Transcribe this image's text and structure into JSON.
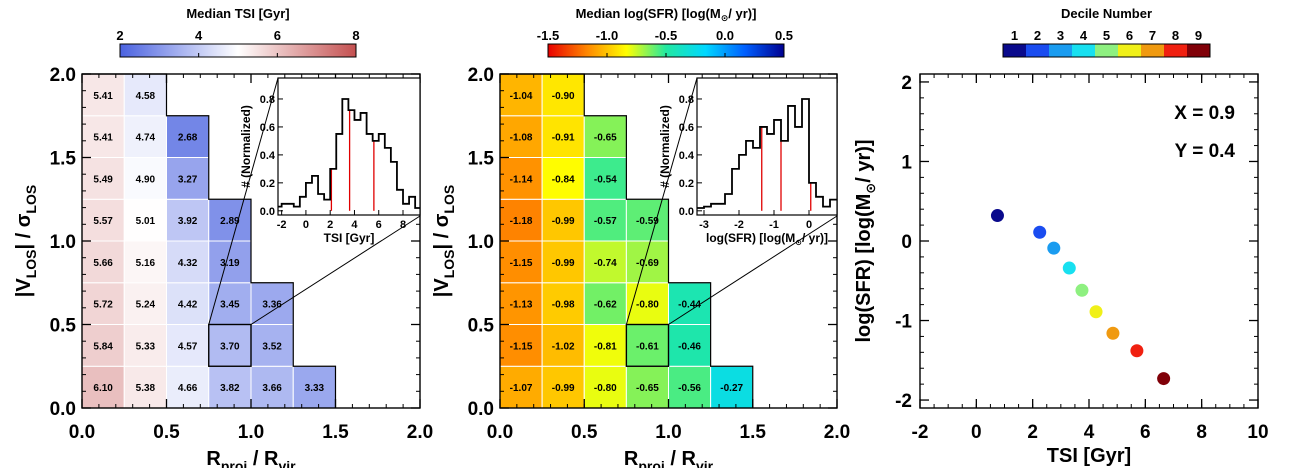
{
  "chart_data": [
    {
      "type": "heatmap",
      "title": "Median TSI [Gyr]",
      "xlabel_main": "R",
      "xlabel_sub1": "proj",
      "xlabel_mid": " / R",
      "xlabel_sub2": "vir",
      "ylabel_main": "|V",
      "ylabel_sub1": "LOS",
      "ylabel_mid": "| / σ",
      "ylabel_sub2": "LOS",
      "xlim": [
        0,
        2
      ],
      "ylim": [
        0,
        2
      ],
      "xticks": [
        "0.0",
        "0.5",
        "1.0",
        "1.5",
        "2.0"
      ],
      "yticks": [
        "0.0",
        "0.5",
        "1.0",
        "1.5",
        "2.0"
      ],
      "cell_width": 0.25,
      "cell_height": 0.25,
      "colorbar": {
        "min": 2,
        "max": 8,
        "ticks": [
          "2",
          "4",
          "6",
          "8"
        ],
        "colormap": "blue-white-red",
        "colors": [
          "#4a62e0",
          "#ffffff",
          "#c45050"
        ]
      },
      "highlight_cell": {
        "x": 0.75,
        "y": 0.25
      },
      "columns": [
        {
          "x": 0.0,
          "values": [
            "6.10",
            "5.84",
            "5.72",
            "5.66",
            "5.57",
            "5.49",
            "5.41",
            "5.41"
          ]
        },
        {
          "x": 0.25,
          "values": [
            "5.38",
            "5.33",
            "5.24",
            "5.16",
            "5.01",
            "4.90",
            "4.74",
            "4.58"
          ]
        },
        {
          "x": 0.5,
          "values": [
            "4.66",
            "4.57",
            "4.42",
            "4.32",
            "3.92",
            "3.27",
            "2.68"
          ]
        },
        {
          "x": 0.75,
          "values": [
            "3.82",
            "3.70",
            "3.45",
            "3.19",
            "2.89"
          ]
        },
        {
          "x": 1.0,
          "values": [
            "3.66",
            "3.52",
            "3.36"
          ]
        },
        {
          "x": 1.25,
          "values": [
            "3.33"
          ]
        }
      ],
      "inset": {
        "type": "histogram",
        "xlabel": "TSI [Gyr]",
        "ylabel": "# (Normalized)",
        "xlim": [
          -2.3,
          9.4
        ],
        "ylim": [
          -0.03,
          0.95
        ],
        "xticks": [
          "-2",
          "0",
          "2",
          "4",
          "6",
          "8"
        ],
        "yticks": [
          "0.0",
          "0.2",
          "0.4",
          "0.6",
          "0.8"
        ],
        "bin_edges": [
          -2.3,
          -2.0,
          -1.5,
          -1.0,
          -0.5,
          0.0,
          0.5,
          1.0,
          1.5,
          2.0,
          2.5,
          3.0,
          3.5,
          4.0,
          4.5,
          5.0,
          5.5,
          6.0,
          6.5,
          7.0,
          7.5,
          8.0,
          8.5,
          9.0,
          9.4
        ],
        "counts": [
          0.03,
          0.05,
          0.05,
          0.03,
          0.1,
          0.2,
          0.25,
          0.12,
          0.08,
          0.3,
          0.55,
          0.8,
          0.72,
          0.65,
          0.7,
          0.55,
          0.5,
          0.55,
          0.45,
          0.35,
          0.15,
          0.05,
          0.1,
          0.02
        ],
        "quartile_lines": [
          2.1,
          3.6,
          5.6
        ]
      }
    },
    {
      "type": "heatmap",
      "title": "Median log(SFR) [log(M",
      "title_tail": "/ yr)]",
      "xlabel_main": "R",
      "xlabel_sub1": "proj",
      "xlabel_mid": " / R",
      "xlabel_sub2": "vir",
      "ylabel_main": "|V",
      "ylabel_sub1": "LOS",
      "ylabel_mid": "| / σ",
      "ylabel_sub2": "LOS",
      "xlim": [
        0,
        2
      ],
      "ylim": [
        0,
        2
      ],
      "xticks": [
        "0.0",
        "0.5",
        "1.0",
        "1.5",
        "2.0"
      ],
      "yticks": [
        "0.0",
        "0.5",
        "1.0",
        "1.5",
        "2.0"
      ],
      "cell_width": 0.25,
      "cell_height": 0.25,
      "colorbar": {
        "min": -1.5,
        "max": 0.5,
        "ticks": [
          "-1.5",
          "-1.0",
          "-0.5",
          "0.0",
          "0.5"
        ],
        "colormap": "rainbow",
        "colors": [
          "#e80000",
          "#ff8800",
          "#ffff00",
          "#22e8a0",
          "#00d8ff",
          "#0060ff",
          "#000090"
        ]
      },
      "highlight_cell": {
        "x": 0.75,
        "y": 0.25
      },
      "columns": [
        {
          "x": 0.0,
          "values": [
            "-1.07",
            "-1.15",
            "-1.13",
            "-1.15",
            "-1.18",
            "-1.14",
            "-1.08",
            "-1.04"
          ]
        },
        {
          "x": 0.25,
          "values": [
            "-0.99",
            "-1.02",
            "-0.98",
            "-0.99",
            "-0.99",
            "-0.84",
            "-0.91",
            "-0.90"
          ]
        },
        {
          "x": 0.5,
          "values": [
            "-0.80",
            "-0.81",
            "-0.62",
            "-0.74",
            "-0.57",
            "-0.54",
            "-0.65"
          ]
        },
        {
          "x": 0.75,
          "values": [
            "-0.65",
            "-0.61",
            "-0.80",
            "-0.69",
            "-0.59"
          ]
        },
        {
          "x": 1.0,
          "values": [
            "-0.56",
            "-0.46",
            "-0.44"
          ]
        },
        {
          "x": 1.25,
          "values": [
            "-0.27"
          ]
        }
      ],
      "inset": {
        "type": "histogram",
        "xlabel_pre": "log(SFR) [log(M",
        "xlabel_post": "/ yr)]",
        "ylabel": "# (Normalized)",
        "xlim": [
          -3.2,
          0.8
        ],
        "ylim": [
          -0.03,
          0.95
        ],
        "xticks": [
          "-3",
          "-2",
          "-1",
          "0"
        ],
        "yticks": [
          "0.0",
          "0.2",
          "0.4",
          "0.6",
          "0.8"
        ],
        "bin_edges": [
          -3.2,
          -3.0,
          -2.8,
          -2.6,
          -2.4,
          -2.2,
          -2.0,
          -1.8,
          -1.6,
          -1.4,
          -1.2,
          -1.0,
          -0.8,
          -0.6,
          -0.4,
          -0.2,
          0.0,
          0.2,
          0.4,
          0.6,
          0.8
        ],
        "counts": [
          0.02,
          0.03,
          0.05,
          0.05,
          0.12,
          0.3,
          0.4,
          0.5,
          0.45,
          0.6,
          0.55,
          0.65,
          0.5,
          0.75,
          0.6,
          0.8,
          0.2,
          0.1,
          0.03,
          0.08
        ],
        "quartile_lines": [
          -1.35,
          -0.8,
          0.05
        ]
      }
    },
    {
      "type": "scatter",
      "title": "Decile Number",
      "xlabel": "TSI [Gyr]",
      "ylabel_pre": "log(SFR) [log(M",
      "ylabel_post": "/ yr)]",
      "xlim": [
        -2,
        10
      ],
      "ylim": [
        -2.1,
        2.1
      ],
      "xticks": [
        "-2",
        "0",
        "2",
        "4",
        "6",
        "8",
        "10"
      ],
      "yticks": [
        "-2",
        "-1",
        "0",
        "1",
        "2"
      ],
      "annotations": [
        "X = 0.9",
        "Y = 0.4"
      ],
      "colorbar": {
        "labels": [
          "1",
          "2",
          "3",
          "4",
          "5",
          "6",
          "7",
          "8",
          "9"
        ],
        "colors": [
          "#0a0a8c",
          "#1a4cf0",
          "#1a9cf0",
          "#18e0f0",
          "#8ef080",
          "#f0f018",
          "#f09a10",
          "#f02010",
          "#800008"
        ]
      },
      "points": [
        {
          "decile": 1,
          "x": 0.75,
          "y": 0.32
        },
        {
          "decile": 2,
          "x": 2.25,
          "y": 0.11
        },
        {
          "decile": 3,
          "x": 2.75,
          "y": -0.09
        },
        {
          "decile": 4,
          "x": 3.3,
          "y": -0.34
        },
        {
          "decile": 5,
          "x": 3.75,
          "y": -0.62
        },
        {
          "decile": 6,
          "x": 4.25,
          "y": -0.89
        },
        {
          "decile": 7,
          "x": 4.85,
          "y": -1.16
        },
        {
          "decile": 8,
          "x": 5.7,
          "y": -1.38
        },
        {
          "decile": 9,
          "x": 6.65,
          "y": -1.73
        }
      ]
    }
  ]
}
